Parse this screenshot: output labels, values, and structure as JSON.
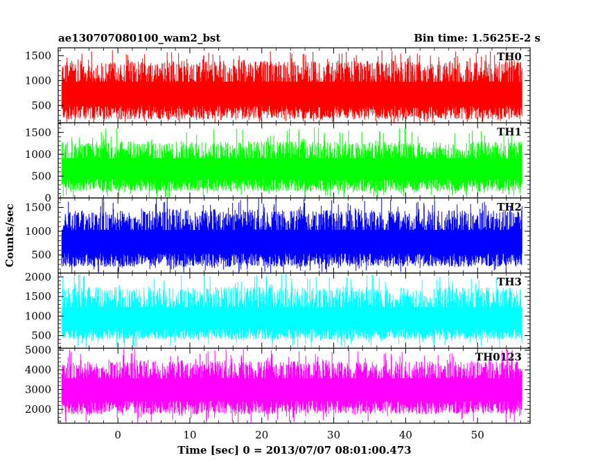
{
  "chart_data": {
    "type": "line",
    "title": "ae130707080100_wam2_bst",
    "subtitle": "Bin time: 1.5625E-2 s",
    "xlabel": "Time [sec] 0 = 2013/07/07 08:01:00.473",
    "ylabel": "Counts/sec",
    "xlim": [
      -8.3,
      57.3
    ],
    "x_ticks": [
      0,
      10,
      20,
      30,
      40,
      50
    ],
    "x_range_data": [
      -7.8,
      56.2
    ],
    "bin_time": 0.015625,
    "grid": false,
    "panels": [
      {
        "name": "TH0",
        "color": "#ff0000",
        "ylim": [
          150,
          1660
        ],
        "y_ticks": [
          500,
          1000,
          1500
        ],
        "level": 750,
        "low_envelope": 220,
        "high_envelope": 1400,
        "max_peak": 1620
      },
      {
        "name": "TH1",
        "color": "#00ff00",
        "ylim": [
          0,
          1720
        ],
        "y_ticks": [
          0,
          500,
          1000,
          1500
        ],
        "level": 700,
        "low_envelope": 150,
        "high_envelope": 1300,
        "max_peak": 1620
      },
      {
        "name": "TH2",
        "color": "#0000ff",
        "ylim": [
          120,
          1700
        ],
        "y_ticks": [
          500,
          1000,
          1500
        ],
        "level": 800,
        "low_envelope": 250,
        "high_envelope": 1450,
        "max_peak": 1700
      },
      {
        "name": "TH3",
        "color": "#00ffff",
        "ylim": [
          180,
          2100
        ],
        "y_ticks": [
          500,
          1000,
          1500,
          2000
        ],
        "level": 950,
        "low_envelope": 400,
        "high_envelope": 1750,
        "max_peak": 2080
      },
      {
        "name": "TH0123",
        "color": "#ff00ff",
        "ylim": [
          1300,
          5100
        ],
        "y_ticks": [
          2000,
          3000,
          4000,
          5000
        ],
        "level": 3100,
        "low_envelope": 1750,
        "high_envelope": 4450,
        "max_peak": 5050
      }
    ]
  }
}
